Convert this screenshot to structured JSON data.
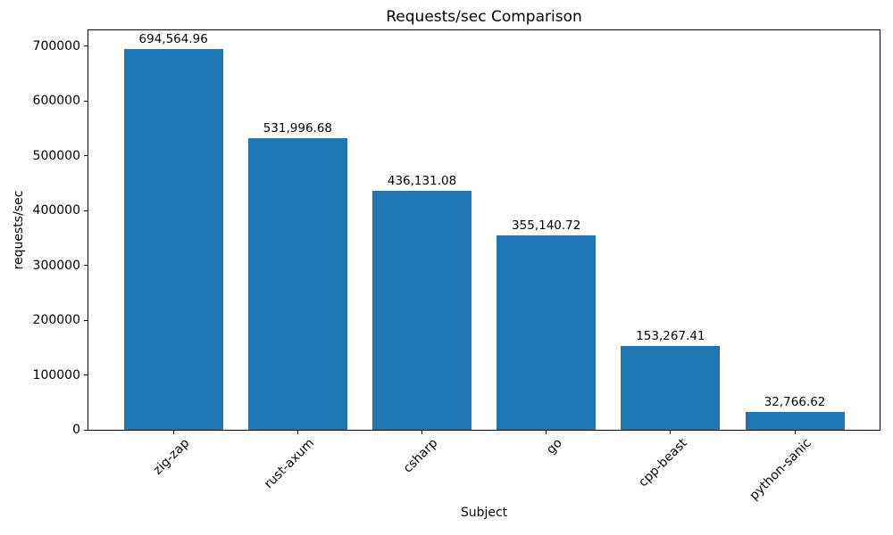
{
  "chart_data": {
    "type": "bar",
    "title": "Requests/sec Comparison",
    "xlabel": "Subject",
    "ylabel": "requests/sec",
    "categories": [
      "zig-zap",
      "rust-axum",
      "csharp",
      "go",
      "cpp-beast",
      "python-sanic"
    ],
    "values": [
      694564.96,
      531996.68,
      436131.08,
      355140.72,
      153267.41,
      32766.62
    ],
    "value_labels": [
      "694,564.96",
      "531,996.68",
      "436,131.08",
      "355,140.72",
      "153,267.41",
      "32,766.62"
    ],
    "bar_color": "#1f77b4",
    "ylim": [
      0,
      729293
    ],
    "yticks": [
      0,
      100000,
      200000,
      300000,
      400000,
      500000,
      600000,
      700000
    ],
    "grid": false,
    "legend": "none",
    "xtick_rotation_deg": 45
  }
}
